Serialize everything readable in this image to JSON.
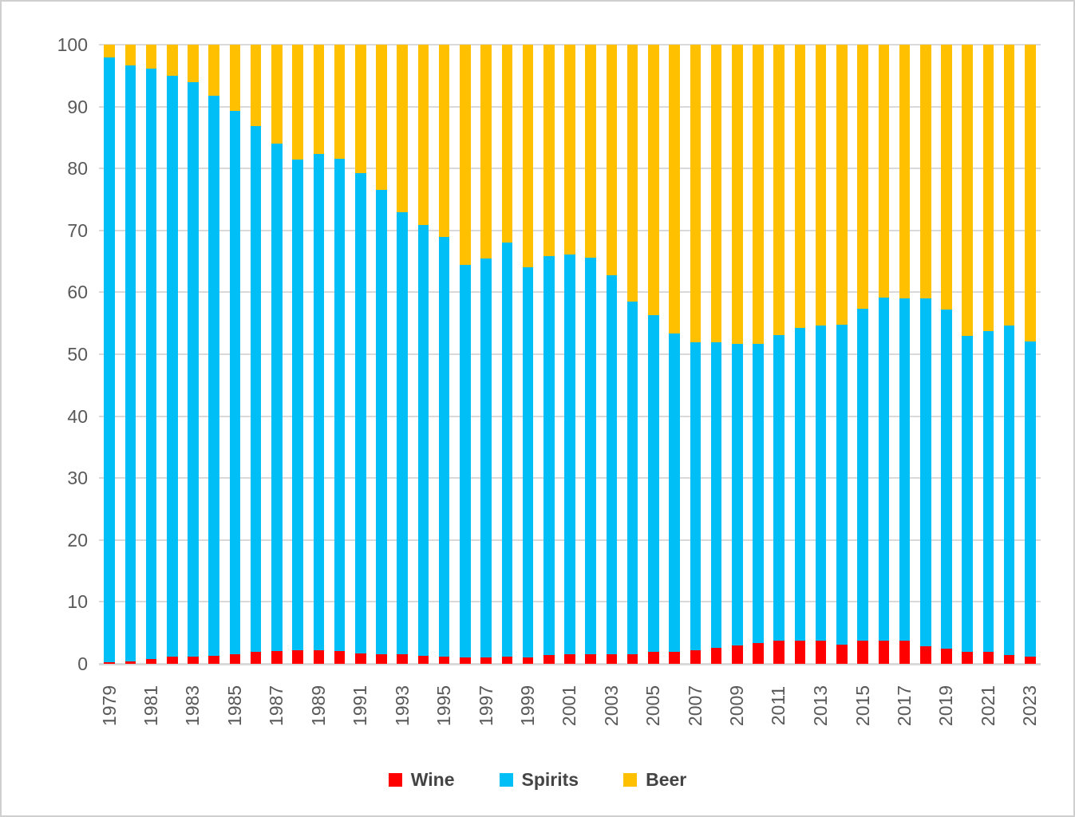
{
  "chart_data": {
    "type": "bar",
    "bar_mode": "stacked-percent",
    "title": "",
    "xlabel": "",
    "ylabel": "",
    "ylim": [
      0,
      100
    ],
    "yticks": [
      0,
      10,
      20,
      30,
      40,
      50,
      60,
      70,
      80,
      90,
      100
    ],
    "grid": true,
    "legend_position": "bottom",
    "xtick_step": 2,
    "categories": [
      1979,
      1980,
      1981,
      1982,
      1983,
      1984,
      1985,
      1986,
      1987,
      1988,
      1989,
      1990,
      1991,
      1992,
      1993,
      1994,
      1995,
      1996,
      1997,
      1998,
      1999,
      2000,
      2001,
      2002,
      2003,
      2004,
      2005,
      2006,
      2007,
      2008,
      2009,
      2010,
      2011,
      2012,
      2013,
      2014,
      2015,
      2016,
      2017,
      2018,
      2019,
      2020,
      2021,
      2022,
      2023
    ],
    "series": [
      {
        "name": "Wine",
        "color": "#ff0000",
        "values": [
          0.3,
          0.4,
          0.8,
          1.1,
          1.2,
          1.3,
          1.6,
          1.9,
          2.0,
          2.2,
          2.2,
          2.0,
          1.7,
          1.6,
          1.5,
          1.3,
          1.1,
          1.0,
          1.0,
          1.1,
          1.0,
          1.4,
          1.6,
          1.5,
          1.6,
          1.6,
          1.9,
          1.9,
          2.2,
          2.6,
          3.0,
          3.4,
          3.8,
          3.8,
          3.7,
          3.1,
          3.7,
          3.8,
          3.8,
          2.9,
          2.4,
          1.9,
          1.9,
          1.4,
          1.1
        ]
      },
      {
        "name": "Spirits",
        "color": "#00bff6",
        "values": [
          97.6,
          96.3,
          95.3,
          93.9,
          92.7,
          90.5,
          87.7,
          85.0,
          82.0,
          79.2,
          80.1,
          79.6,
          77.5,
          74.9,
          71.5,
          69.6,
          67.8,
          63.4,
          64.5,
          66.9,
          63.0,
          64.4,
          64.5,
          64.1,
          61.2,
          56.9,
          54.4,
          51.4,
          49.7,
          49.3,
          48.7,
          48.3,
          49.3,
          50.5,
          51.0,
          51.7,
          53.6,
          55.3,
          55.2,
          56.1,
          54.8,
          51.1,
          51.8,
          53.3,
          51.0
        ]
      },
      {
        "name": "Beer",
        "color": "#ffc000",
        "values": [
          2.1,
          3.3,
          3.9,
          5.0,
          6.1,
          8.2,
          10.7,
          13.1,
          16.0,
          18.6,
          17.7,
          18.4,
          20.8,
          23.5,
          27.0,
          29.1,
          31.1,
          35.6,
          34.5,
          32.0,
          36.0,
          34.2,
          33.9,
          34.4,
          37.2,
          41.5,
          43.7,
          46.7,
          48.1,
          48.1,
          48.3,
          48.3,
          46.9,
          45.7,
          45.3,
          45.2,
          42.7,
          40.9,
          41.0,
          41.0,
          42.8,
          47.0,
          46.3,
          45.3,
          47.9
        ]
      }
    ],
    "colors": {
      "gridline": "#d9d9d9",
      "axis_text": "#595959",
      "legend_text": "#444444",
      "background": "#ffffff",
      "frame_border": "#cfcfcf"
    }
  }
}
